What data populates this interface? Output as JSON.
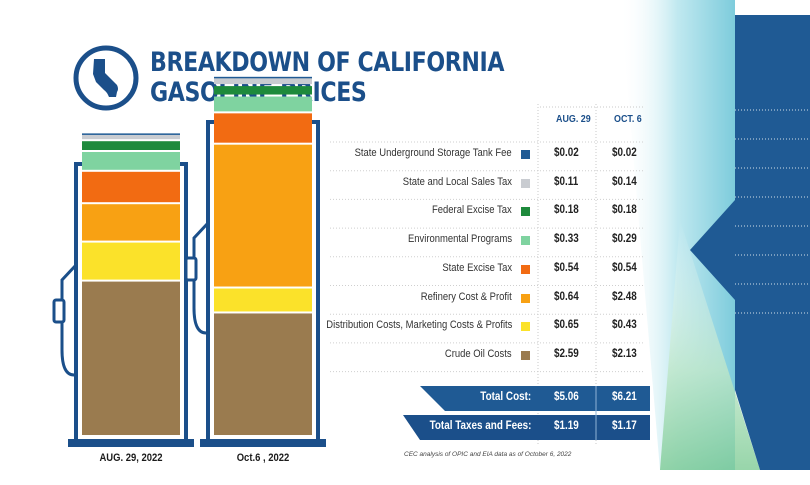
{
  "title_line1": "BREAKDOWN OF CALIFORNIA",
  "title_line2": "GASOLINE PRICES",
  "columns": [
    "AUG. 29",
    "OCT. 6"
  ],
  "pump_labels": [
    "AUG. 29, 2022",
    "Oct.6 , 2022"
  ],
  "source_note": "CEC analysis of OPIC and EIA data as of October 6, 2022",
  "totals": [
    {
      "label": "Total Cost:",
      "values": [
        "$5.06",
        "$6.21"
      ]
    },
    {
      "label": "Total Taxes and Fees:",
      "values": [
        "$1.19",
        "$1.17"
      ]
    }
  ],
  "chart_data": {
    "type": "bar",
    "stacked": true,
    "categories": [
      "AUG. 29, 2022",
      "Oct.6 , 2022"
    ],
    "series": [
      {
        "name": "State Underground Storage Tank Fee",
        "color": "#1f5a94",
        "values": [
          0.02,
          0.02
        ],
        "labels": [
          "$0.02",
          "$0.02"
        ]
      },
      {
        "name": "State and Local Sales Tax",
        "color": "#c9ccd1",
        "values": [
          0.11,
          0.14
        ],
        "labels": [
          "$0.11",
          "$0.14"
        ]
      },
      {
        "name": "Federal Excise Tax",
        "color": "#1e8a3c",
        "values": [
          0.18,
          0.18
        ],
        "labels": [
          "$0.18",
          "$0.18"
        ]
      },
      {
        "name": "Environmental Programs",
        "color": "#7fd3a0",
        "values": [
          0.33,
          0.29
        ],
        "labels": [
          "$0.33",
          "$0.29"
        ]
      },
      {
        "name": "State Excise Tax",
        "color": "#f26b12",
        "values": [
          0.54,
          0.54
        ],
        "labels": [
          "$0.54",
          "$0.54"
        ]
      },
      {
        "name": "Refinery Cost & Profit",
        "color": "#f8a113",
        "values": [
          0.64,
          2.48
        ],
        "labels": [
          "$0.64",
          "$2.48"
        ]
      },
      {
        "name": "Distribution Costs, Marketing Costs & Profits",
        "color": "#fbe22a",
        "values": [
          0.65,
          0.43
        ],
        "labels": [
          "$0.65",
          "$0.43"
        ]
      },
      {
        "name": "Crude Oil Costs",
        "color": "#9a7b4f",
        "values": [
          2.59,
          2.13
        ],
        "labels": [
          "$2.59",
          "$2.13"
        ]
      }
    ]
  }
}
